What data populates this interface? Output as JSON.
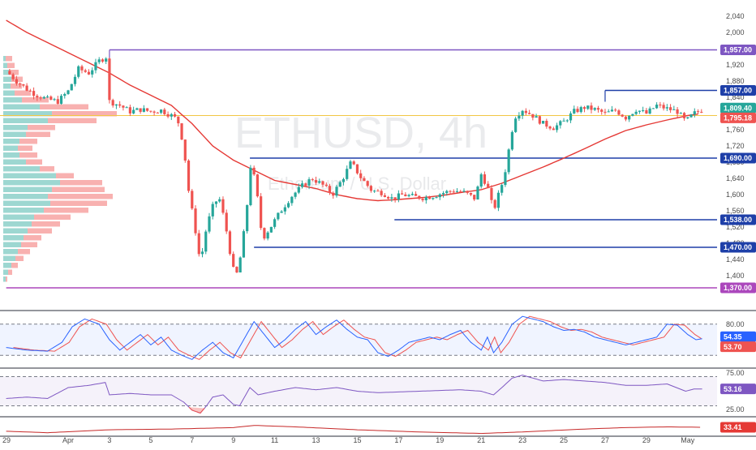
{
  "chart_data": [
    {
      "type": "candlestick",
      "watermark": {
        "title": "ETHUSD, 4h",
        "subtitle": "Ethereum / U.S. Dollar"
      },
      "ylim": [
        1340,
        2060
      ],
      "y_ticks": [
        1400,
        1440,
        1480,
        1520,
        1560,
        1600,
        1640,
        1680,
        1720,
        1760,
        1800,
        1840,
        1880,
        1920,
        2000,
        2040
      ],
      "y_tick_labels": [
        "1,400",
        "1,440",
        "1,480",
        "1,520",
        "1,560",
        "1,600",
        "1,640",
        "1,680",
        "1,720",
        "1,760",
        "1,800",
        "1,840",
        "1,880",
        "1,920",
        "2,000",
        "2,040"
      ],
      "x_axis": [
        {
          "label": "29",
          "day": -2
        },
        {
          "label": "Apr",
          "day": 1
        },
        {
          "label": "3",
          "day": 3
        },
        {
          "label": "5",
          "day": 5
        },
        {
          "label": "7",
          "day": 7
        },
        {
          "label": "9",
          "day": 9
        },
        {
          "label": "11",
          "day": 11
        },
        {
          "label": "13",
          "day": 13
        },
        {
          "label": "15",
          "day": 15
        },
        {
          "label": "17",
          "day": 17
        },
        {
          "label": "19",
          "day": 19
        },
        {
          "label": "21",
          "day": 21
        },
        {
          "label": "23",
          "day": 23
        },
        {
          "label": "25",
          "day": 25
        },
        {
          "label": "27",
          "day": 27
        },
        {
          "label": "29",
          "day": 29
        },
        {
          "label": "May",
          "day": 31
        }
      ],
      "colors": {
        "up": "#26a69a",
        "down": "#ef5350",
        "ma": "#e53935"
      },
      "levels": [
        {
          "value": 1957,
          "label": "1,957.00",
          "color": "#7e57c2",
          "from_day": 3.0
        },
        {
          "value": 1857,
          "label": "1,857.00",
          "color": "#1e3fa8",
          "from_day": 27.0
        },
        {
          "value": 1690,
          "label": "1,690.00",
          "color": "#1e3fa8",
          "from_day": 9.8
        },
        {
          "value": 1538,
          "label": "1,538.00",
          "color": "#1e3fa8",
          "from_day": 16.8
        },
        {
          "value": 1470,
          "label": "1,470.00",
          "color": "#1e3fa8",
          "from_day": 10.0
        },
        {
          "value": 1370,
          "label": "1,370.00",
          "color": "#ab47bc",
          "from_day": -2.0
        }
      ],
      "price_tags": [
        {
          "value": 1809.4,
          "label": "1,809.40",
          "color": "#26a69a"
        },
        {
          "value": 1795.18,
          "label": "1,795.18",
          "color": "#ef5350"
        }
      ],
      "price_line": {
        "value": 1795,
        "color": "#f2c744"
      },
      "ohlc_keypoints": [
        [
          -2.0,
          1905
        ],
        [
          -1.5,
          1880
        ],
        [
          -1.0,
          1860
        ],
        [
          -0.5,
          1845
        ],
        [
          0.0,
          1835
        ],
        [
          0.5,
          1830
        ],
        [
          1.0,
          1855
        ],
        [
          1.5,
          1910
        ],
        [
          2.0,
          1900
        ],
        [
          2.5,
          1930
        ],
        [
          2.85,
          1940
        ],
        [
          3.0,
          1830
        ],
        [
          3.5,
          1820
        ],
        [
          4.0,
          1805
        ],
        [
          4.5,
          1810
        ],
        [
          5.0,
          1805
        ],
        [
          5.5,
          1808
        ],
        [
          6.0,
          1795
        ],
        [
          6.3,
          1785
        ],
        [
          6.6,
          1720
        ],
        [
          6.8,
          1620
        ],
        [
          7.0,
          1560
        ],
        [
          7.2,
          1500
        ],
        [
          7.4,
          1430
        ],
        [
          7.7,
          1520
        ],
        [
          8.0,
          1570
        ],
        [
          8.3,
          1595
        ],
        [
          8.6,
          1530
        ],
        [
          8.9,
          1440
        ],
        [
          9.1,
          1390
        ],
        [
          9.4,
          1460
        ],
        [
          9.7,
          1590
        ],
        [
          9.85,
          1680
        ],
        [
          10.1,
          1620
        ],
        [
          10.4,
          1490
        ],
        [
          10.8,
          1520
        ],
        [
          11.3,
          1560
        ],
        [
          11.8,
          1595
        ],
        [
          12.3,
          1620
        ],
        [
          12.8,
          1640
        ],
        [
          13.3,
          1625
        ],
        [
          13.8,
          1600
        ],
        [
          14.3,
          1640
        ],
        [
          14.7,
          1680
        ],
        [
          15.2,
          1640
        ],
        [
          15.7,
          1610
        ],
        [
          16.2,
          1605
        ],
        [
          16.7,
          1590
        ],
        [
          17.2,
          1600
        ],
        [
          17.7,
          1595
        ],
        [
          18.2,
          1592
        ],
        [
          18.7,
          1597
        ],
        [
          19.2,
          1605
        ],
        [
          19.7,
          1610
        ],
        [
          20.2,
          1605
        ],
        [
          20.7,
          1590
        ],
        [
          21.0,
          1650
        ],
        [
          21.3,
          1620
        ],
        [
          21.6,
          1560
        ],
        [
          21.9,
          1610
        ],
        [
          22.1,
          1640
        ],
        [
          22.3,
          1700
        ],
        [
          22.6,
          1790
        ],
        [
          23.0,
          1810
        ],
        [
          23.5,
          1795
        ],
        [
          24.0,
          1775
        ],
        [
          24.5,
          1765
        ],
        [
          25.0,
          1780
        ],
        [
          25.5,
          1805
        ],
        [
          26.0,
          1815
        ],
        [
          26.5,
          1810
        ],
        [
          27.0,
          1800
        ],
        [
          27.5,
          1808
        ],
        [
          28.0,
          1790
        ],
        [
          28.5,
          1810
        ],
        [
          29.0,
          1800
        ],
        [
          29.5,
          1820
        ],
        [
          30.0,
          1812
        ],
        [
          30.5,
          1805
        ],
        [
          30.9,
          1780
        ],
        [
          31.3,
          1800
        ],
        [
          31.7,
          1809
        ]
      ],
      "ma_keypoints": [
        [
          -2.0,
          2030
        ],
        [
          -1.0,
          2000
        ],
        [
          0.0,
          1975
        ],
        [
          1.0,
          1950
        ],
        [
          2.0,
          1925
        ],
        [
          3.0,
          1900
        ],
        [
          4.0,
          1870
        ],
        [
          5.0,
          1845
        ],
        [
          6.0,
          1820
        ],
        [
          7.0,
          1775
        ],
        [
          8.0,
          1720
        ],
        [
          9.0,
          1685
        ],
        [
          10.0,
          1660
        ],
        [
          11.0,
          1635
        ],
        [
          12.0,
          1625
        ],
        [
          13.0,
          1615
        ],
        [
          14.0,
          1600
        ],
        [
          15.0,
          1590
        ],
        [
          16.0,
          1585
        ],
        [
          17.0,
          1588
        ],
        [
          18.0,
          1592
        ],
        [
          19.0,
          1597
        ],
        [
          20.0,
          1605
        ],
        [
          21.0,
          1612
        ],
        [
          22.0,
          1628
        ],
        [
          23.0,
          1648
        ],
        [
          24.0,
          1668
        ],
        [
          25.0,
          1690
        ],
        [
          26.0,
          1713
        ],
        [
          27.0,
          1737
        ],
        [
          28.0,
          1758
        ],
        [
          29.0,
          1772
        ],
        [
          30.0,
          1784
        ],
        [
          31.0,
          1795
        ],
        [
          31.7,
          1800
        ]
      ],
      "volume_profile": {
        "bins": [
          [
            1935,
            3,
            8
          ],
          [
            1918,
            5,
            9
          ],
          [
            1901,
            7,
            12
          ],
          [
            1884,
            10,
            14
          ],
          [
            1867,
            9,
            14
          ],
          [
            1850,
            14,
            20
          ],
          [
            1833,
            23,
            33
          ],
          [
            1816,
            45,
            60
          ],
          [
            1799,
            60,
            80
          ],
          [
            1782,
            55,
            60
          ],
          [
            1765,
            30,
            34
          ],
          [
            1748,
            28,
            30
          ],
          [
            1731,
            20,
            22
          ],
          [
            1714,
            18,
            18
          ],
          [
            1697,
            20,
            22
          ],
          [
            1680,
            28,
            20
          ],
          [
            1663,
            45,
            18
          ],
          [
            1646,
            65,
            22
          ],
          [
            1629,
            70,
            52
          ],
          [
            1612,
            60,
            65
          ],
          [
            1595,
            55,
            80
          ],
          [
            1578,
            58,
            70
          ],
          [
            1561,
            50,
            55
          ],
          [
            1544,
            38,
            45
          ],
          [
            1527,
            35,
            35
          ],
          [
            1510,
            30,
            30
          ],
          [
            1493,
            25,
            22
          ],
          [
            1476,
            22,
            20
          ],
          [
            1459,
            18,
            15
          ],
          [
            1442,
            15,
            10
          ],
          [
            1425,
            10,
            8
          ],
          [
            1408,
            6,
            5
          ],
          [
            1391,
            3,
            2
          ]
        ]
      }
    },
    {
      "type": "line",
      "name": "Stochastic",
      "ylim": [
        0,
        100
      ],
      "y_ticks": [
        80
      ],
      "y_tick_labels": [
        "80.00"
      ],
      "bands": [
        20,
        80
      ],
      "k_keypoints": [
        [
          -2,
          35
        ],
        [
          -1,
          30
        ],
        [
          0,
          28
        ],
        [
          0.7,
          45
        ],
        [
          1.2,
          75
        ],
        [
          1.8,
          90
        ],
        [
          2.5,
          80
        ],
        [
          3.0,
          50
        ],
        [
          3.5,
          30
        ],
        [
          4.0,
          45
        ],
        [
          4.5,
          60
        ],
        [
          5.0,
          40
        ],
        [
          5.5,
          55
        ],
        [
          6.0,
          30
        ],
        [
          6.5,
          20
        ],
        [
          7.0,
          12
        ],
        [
          7.5,
          30
        ],
        [
          8.0,
          45
        ],
        [
          8.5,
          25
        ],
        [
          9.0,
          15
        ],
        [
          9.5,
          50
        ],
        [
          10.0,
          85
        ],
        [
          10.5,
          60
        ],
        [
          11.0,
          35
        ],
        [
          11.5,
          50
        ],
        [
          12.0,
          70
        ],
        [
          12.5,
          85
        ],
        [
          13.0,
          60
        ],
        [
          13.5,
          75
        ],
        [
          14.0,
          88
        ],
        [
          14.5,
          70
        ],
        [
          15.0,
          55
        ],
        [
          15.5,
          50
        ],
        [
          16.0,
          25
        ],
        [
          16.5,
          18
        ],
        [
          17.0,
          30
        ],
        [
          17.5,
          45
        ],
        [
          18.0,
          50
        ],
        [
          18.5,
          55
        ],
        [
          19.0,
          50
        ],
        [
          19.5,
          60
        ],
        [
          20.0,
          68
        ],
        [
          20.5,
          45
        ],
        [
          21.0,
          30
        ],
        [
          21.3,
          55
        ],
        [
          21.6,
          25
        ],
        [
          22.0,
          45
        ],
        [
          22.5,
          80
        ],
        [
          23.0,
          95
        ],
        [
          23.5,
          90
        ],
        [
          24.0,
          85
        ],
        [
          24.5,
          75
        ],
        [
          25.0,
          68
        ],
        [
          25.5,
          70
        ],
        [
          26.0,
          65
        ],
        [
          26.5,
          55
        ],
        [
          27.0,
          50
        ],
        [
          27.5,
          45
        ],
        [
          28.0,
          40
        ],
        [
          28.5,
          45
        ],
        [
          29.0,
          50
        ],
        [
          29.5,
          55
        ],
        [
          30.0,
          80
        ],
        [
          30.5,
          78
        ],
        [
          31.0,
          60
        ],
        [
          31.4,
          50
        ],
        [
          31.7,
          52
        ]
      ],
      "d_lag": 0.35,
      "colors": {
        "k": "#2962ff",
        "d": "#ef5350"
      },
      "tags": [
        {
          "value": 54.35,
          "label": "54.35",
          "color": "#2962ff"
        },
        {
          "value": 53.7,
          "label": "53.70",
          "color": "#ef5350"
        }
      ]
    },
    {
      "type": "line",
      "name": "RSI",
      "ylim": [
        15,
        85
      ],
      "y_ticks": [
        75,
        25
      ],
      "y_tick_labels": [
        "75.00",
        "25.00"
      ],
      "bands": [
        30,
        70
      ],
      "keypoints": [
        [
          -2,
          40
        ],
        [
          -1,
          42
        ],
        [
          0,
          40
        ],
        [
          1,
          55
        ],
        [
          2,
          58
        ],
        [
          2.8,
          62
        ],
        [
          3.0,
          45
        ],
        [
          4,
          47
        ],
        [
          5,
          45
        ],
        [
          6,
          45
        ],
        [
          6.6,
          35
        ],
        [
          7.0,
          24
        ],
        [
          7.4,
          20
        ],
        [
          7.7,
          30
        ],
        [
          8.0,
          42
        ],
        [
          8.5,
          45
        ],
        [
          9.0,
          32
        ],
        [
          9.3,
          30
        ],
        [
          9.8,
          55
        ],
        [
          10.2,
          45
        ],
        [
          11,
          50
        ],
        [
          12,
          55
        ],
        [
          13,
          52
        ],
        [
          14,
          55
        ],
        [
          15,
          50
        ],
        [
          16,
          48
        ],
        [
          17,
          49
        ],
        [
          18,
          50
        ],
        [
          19,
          51
        ],
        [
          20,
          52
        ],
        [
          21,
          50
        ],
        [
          21.6,
          45
        ],
        [
          22,
          55
        ],
        [
          22.5,
          68
        ],
        [
          23,
          72
        ],
        [
          23.5,
          68
        ],
        [
          24,
          64
        ],
        [
          25,
          66
        ],
        [
          26,
          64
        ],
        [
          27,
          62
        ],
        [
          28,
          58
        ],
        [
          29,
          58
        ],
        [
          30,
          60
        ],
        [
          30.9,
          50
        ],
        [
          31.3,
          53
        ],
        [
          31.7,
          53.16
        ]
      ],
      "color": "#7e57c2",
      "tag": {
        "value": 53.16,
        "label": "53.16",
        "color": "#7e57c2"
      }
    },
    {
      "type": "line",
      "name": "Indicator",
      "keypoints": [
        [
          -2,
          28
        ],
        [
          0,
          26
        ],
        [
          3,
          30
        ],
        [
          6,
          31
        ],
        [
          9,
          33
        ],
        [
          10,
          36
        ],
        [
          12,
          34
        ],
        [
          15,
          30
        ],
        [
          18,
          27
        ],
        [
          21,
          25
        ],
        [
          23,
          27
        ],
        [
          26,
          31
        ],
        [
          28,
          33
        ],
        [
          30,
          34
        ],
        [
          31.7,
          33.41
        ]
      ],
      "color": "#c62828",
      "tag": {
        "value": 33.41,
        "label": "33.41",
        "color": "#e53935"
      }
    }
  ]
}
